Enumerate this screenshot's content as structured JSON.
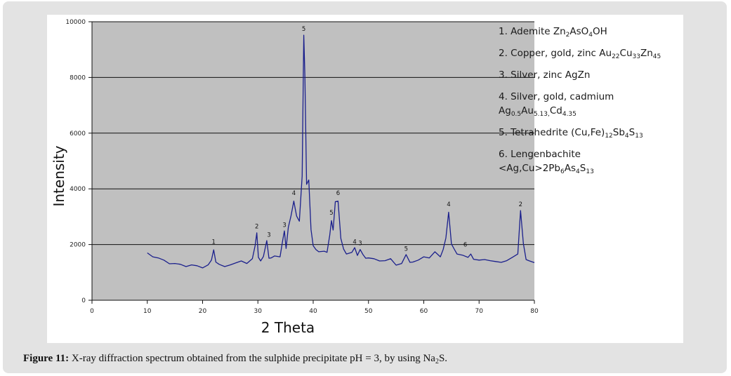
{
  "chart_data": {
    "type": "line",
    "xlabel": "2 Theta",
    "ylabel": "Intensity",
    "xlim": [
      0,
      80
    ],
    "ylim": [
      0,
      10000
    ],
    "x_ticks": [
      0,
      10,
      20,
      30,
      40,
      50,
      60,
      70,
      80
    ],
    "y_ticks": [
      0,
      2000,
      4000,
      6000,
      8000,
      10000
    ],
    "grid": "horizontal",
    "background": "#c0c0c0",
    "line_color": "#1a1f8c",
    "series": [
      {
        "x": [
          10,
          11,
          12,
          13,
          14,
          15,
          16,
          17,
          18,
          19,
          20,
          21,
          21.6,
          22,
          22.4,
          23,
          24,
          25,
          26,
          27,
          28,
          29,
          29.5,
          29.8,
          30.1,
          30.5,
          31,
          31.6,
          32,
          32.4,
          33,
          34,
          34.5,
          34.8,
          35.1,
          35.5,
          36,
          36.5,
          37,
          37.5,
          38,
          38.3,
          38.5,
          38.8,
          39.2,
          39.6,
          40,
          40.5,
          41,
          42,
          42.5,
          43,
          43.3,
          43.6,
          44,
          44.5,
          45,
          45.5,
          46,
          47,
          47.5,
          48,
          48.5,
          49,
          49.5,
          50,
          51,
          52,
          53,
          54,
          55,
          56,
          56.8,
          57.5,
          58,
          59,
          60,
          61,
          62,
          63,
          63.5,
          64,
          64.5,
          65,
          65.5,
          66,
          67,
          68,
          68.5,
          69,
          70,
          71,
          72,
          73,
          74,
          75,
          76,
          77,
          77.5,
          78,
          78.5,
          79,
          80
        ],
        "y": [
          1700,
          1600,
          1500,
          1400,
          1350,
          1300,
          1250,
          1250,
          1250,
          1200,
          1200,
          1250,
          1400,
          1850,
          1350,
          1250,
          1250,
          1250,
          1300,
          1450,
          1300,
          1450,
          2000,
          2400,
          1500,
          1450,
          1550,
          2100,
          1550,
          1500,
          1550,
          1600,
          2150,
          2450,
          1900,
          2600,
          3000,
          3600,
          3000,
          2800,
          4500,
          9500,
          8000,
          4200,
          4300,
          2500,
          2000,
          1800,
          1700,
          1800,
          1700,
          2300,
          2900,
          2500,
          3500,
          3600,
          2200,
          1800,
          1700,
          1700,
          1850,
          1650,
          1800,
          1600,
          1550,
          1500,
          1450,
          1450,
          1400,
          1450,
          1300,
          1300,
          1600,
          1400,
          1350,
          1400,
          1600,
          1500,
          1700,
          1600,
          1800,
          2200,
          3200,
          2000,
          1800,
          1700,
          1600,
          1500,
          1700,
          1450,
          1400,
          1500,
          1400,
          1350,
          1400,
          1400,
          1500,
          1700,
          3200,
          2000,
          1500,
          1400,
          1350
        ]
      }
    ],
    "peak_labels": [
      {
        "label": "1",
        "x": 22,
        "y": 1850
      },
      {
        "label": "2",
        "x": 29.8,
        "y": 2400
      },
      {
        "label": "3",
        "x": 32,
        "y": 2100
      },
      {
        "label": "3",
        "x": 34.8,
        "y": 2450
      },
      {
        "label": "4",
        "x": 36.5,
        "y": 3600
      },
      {
        "label": "5",
        "x": 38.3,
        "y": 9500
      },
      {
        "label": "5",
        "x": 43.3,
        "y": 2900
      },
      {
        "label": "6",
        "x": 44.5,
        "y": 3600
      },
      {
        "label": "4",
        "x": 47.5,
        "y": 1850
      },
      {
        "label": "3",
        "x": 48.5,
        "y": 1800
      },
      {
        "label": "5",
        "x": 56.8,
        "y": 1600
      },
      {
        "label": "4",
        "x": 64.5,
        "y": 3200
      },
      {
        "label": "6",
        "x": 67.5,
        "y": 1750
      },
      {
        "label": "2",
        "x": 77.5,
        "y": 3200
      }
    ]
  },
  "legend": {
    "items": [
      {
        "parts": [
          [
            "1.  Ademite Zn",
            ""
          ],
          [
            "2",
            "sub"
          ],
          [
            "AsO",
            ""
          ],
          [
            "4",
            "sub"
          ],
          [
            "OH",
            ""
          ]
        ]
      },
      {
        "parts": [
          [
            "2.  Copper, gold, zinc Au",
            ""
          ],
          [
            "22",
            "sub"
          ],
          [
            "Cu",
            ""
          ],
          [
            "33",
            "sub"
          ],
          [
            "Zn",
            ""
          ],
          [
            "45",
            "sub"
          ]
        ]
      },
      {
        "parts": [
          [
            "3.   Silver, zinc AgZn",
            ""
          ]
        ]
      },
      {
        "parts": [
          [
            "4.  Silver, gold, cadmium",
            ""
          ],
          [
            "",
            "br"
          ],
          [
            "Ag",
            ""
          ],
          [
            "0.5",
            "sub"
          ],
          [
            "Au",
            ""
          ],
          [
            "5.13,",
            "sub"
          ],
          [
            "Cd",
            ""
          ],
          [
            "4.35",
            "sub"
          ]
        ]
      },
      {
        "parts": [
          [
            "5.  Tetrahedrite (Cu,Fe)",
            ""
          ],
          [
            "12",
            "sub"
          ],
          [
            "Sb",
            ""
          ],
          [
            "4",
            "sub"
          ],
          [
            "S",
            ""
          ],
          [
            "13",
            "sub"
          ]
        ]
      },
      {
        "parts": [
          [
            "6.   Lengenbachite",
            ""
          ],
          [
            "",
            "br"
          ],
          [
            "<Ag,Cu>2Pb",
            ""
          ],
          [
            "6",
            "sub"
          ],
          [
            "As",
            ""
          ],
          [
            "4",
            "sub"
          ],
          [
            "S",
            ""
          ],
          [
            "13",
            "sub"
          ]
        ]
      }
    ]
  },
  "caption": {
    "label": "Figure 11:",
    "text": " X-ray diffraction spectrum obtained from the sulphide precipitate pH = 3, by using Na",
    "sub": "2",
    "end": "S."
  }
}
